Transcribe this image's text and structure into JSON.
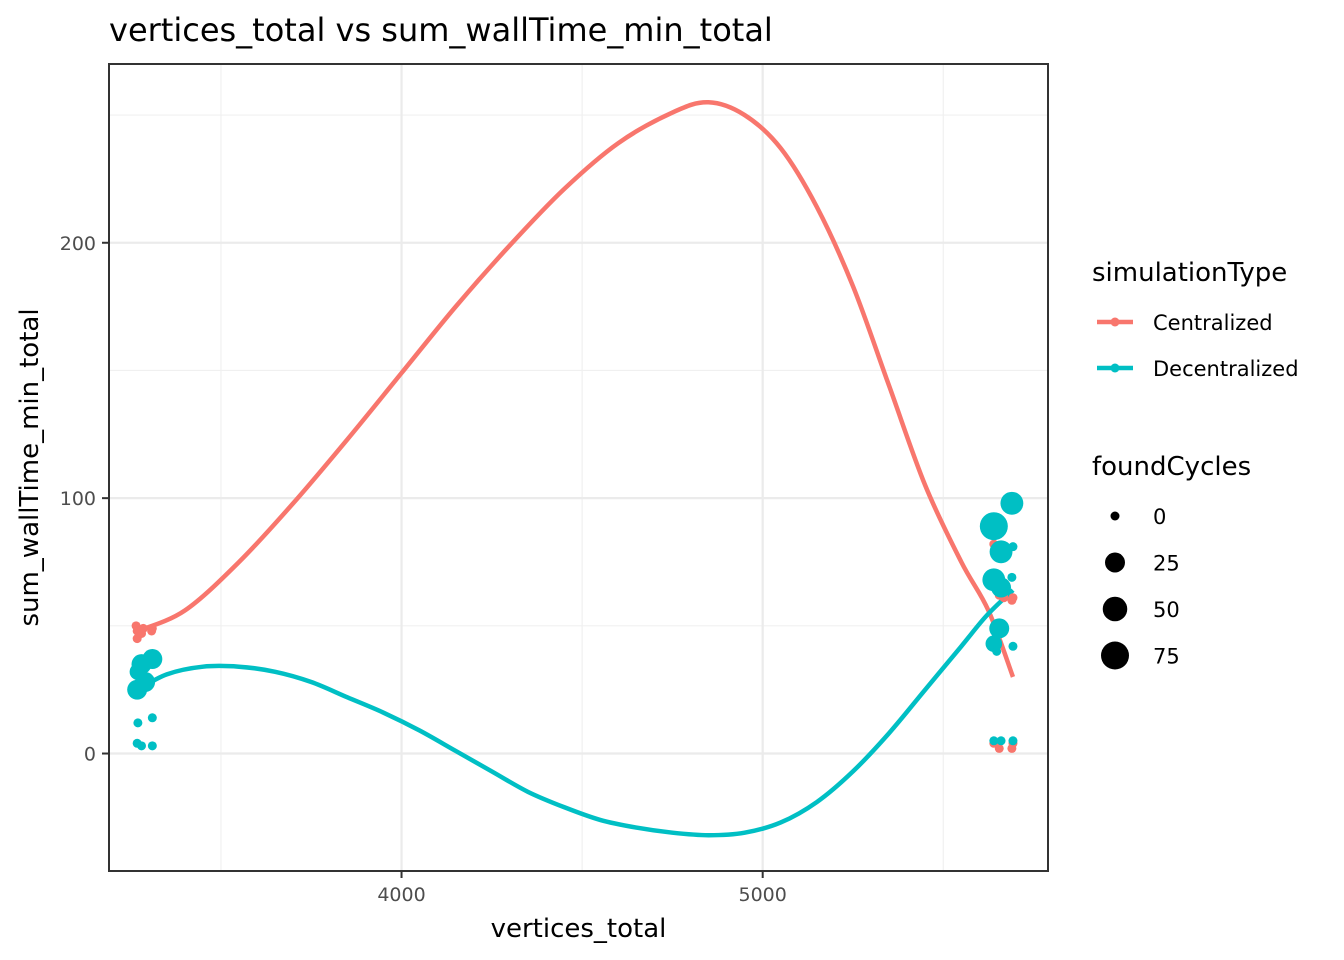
{
  "chart_data": {
    "type": "scatter",
    "title": "vertices_total  vs  sum_wallTime_min_total",
    "xlabel": "vertices_total",
    "ylabel": "sum_wallTime_min_total",
    "xlim": [
      3190,
      5790
    ],
    "ylim": [
      -46,
      270
    ],
    "x_ticks": [
      4000,
      5000
    ],
    "x_tick_labels": [
      "4000",
      "5000"
    ],
    "y_ticks": [
      0,
      100,
      200
    ],
    "y_tick_labels": [
      "0",
      "100",
      "200"
    ],
    "grid": true,
    "color_legend": {
      "title": "simulationType",
      "entries": [
        {
          "label": "Centralized",
          "color": "#F8766D"
        },
        {
          "label": "Decentralized",
          "color": "#00BFC4"
        }
      ]
    },
    "size_legend": {
      "title": "foundCycles",
      "entries": [
        {
          "label": "0",
          "value": 0
        },
        {
          "label": "25",
          "value": 25
        },
        {
          "label": "50",
          "value": 50
        },
        {
          "label": "75",
          "value": 75
        }
      ]
    },
    "legend_position": "right",
    "series": [
      {
        "name": "Centralized",
        "color": "#F8766D",
        "points": [
          {
            "x": 3265,
            "y": 50,
            "size": 0
          },
          {
            "x": 3268,
            "y": 48,
            "size": 0
          },
          {
            "x": 3268,
            "y": 45,
            "size": 0
          },
          {
            "x": 3280,
            "y": 47,
            "size": 0
          },
          {
            "x": 3285,
            "y": 49,
            "size": 0
          },
          {
            "x": 3308,
            "y": 48,
            "size": 0
          },
          {
            "x": 3310,
            "y": 49,
            "size": 0
          },
          {
            "x": 5640,
            "y": 82,
            "size": 0
          },
          {
            "x": 5655,
            "y": 62,
            "size": 0
          },
          {
            "x": 5668,
            "y": 61,
            "size": 0
          },
          {
            "x": 5690,
            "y": 60,
            "size": 0
          },
          {
            "x": 5693,
            "y": 61,
            "size": 0
          },
          {
            "x": 5640,
            "y": 4,
            "size": 0
          },
          {
            "x": 5655,
            "y": 2,
            "size": 0
          },
          {
            "x": 5690,
            "y": 2,
            "size": 0
          },
          {
            "x": 5693,
            "y": 4,
            "size": 0
          }
        ],
        "smooth": [
          {
            "x": 3270,
            "y": 48
          },
          {
            "x": 3400,
            "y": 56
          },
          {
            "x": 3550,
            "y": 75
          },
          {
            "x": 3700,
            "y": 98
          },
          {
            "x": 3850,
            "y": 123
          },
          {
            "x": 4000,
            "y": 149
          },
          {
            "x": 4150,
            "y": 175
          },
          {
            "x": 4300,
            "y": 199
          },
          {
            "x": 4450,
            "y": 221
          },
          {
            "x": 4600,
            "y": 239
          },
          {
            "x": 4750,
            "y": 251
          },
          {
            "x": 4850,
            "y": 255
          },
          {
            "x": 4950,
            "y": 250
          },
          {
            "x": 5050,
            "y": 237
          },
          {
            "x": 5150,
            "y": 214
          },
          {
            "x": 5250,
            "y": 183
          },
          {
            "x": 5350,
            "y": 144
          },
          {
            "x": 5450,
            "y": 105
          },
          {
            "x": 5550,
            "y": 75
          },
          {
            "x": 5625,
            "y": 56
          },
          {
            "x": 5693,
            "y": 30
          }
        ]
      },
      {
        "name": "Decentralized",
        "color": "#00BFC4",
        "points": [
          {
            "x": 3268,
            "y": 25,
            "size": 25
          },
          {
            "x": 3290,
            "y": 28,
            "size": 25
          },
          {
            "x": 3270,
            "y": 32,
            "size": 12
          },
          {
            "x": 3280,
            "y": 35,
            "size": 25
          },
          {
            "x": 3310,
            "y": 37,
            "size": 25
          },
          {
            "x": 3270,
            "y": 12,
            "size": 0
          },
          {
            "x": 3310,
            "y": 14,
            "size": 0
          },
          {
            "x": 3268,
            "y": 4,
            "size": 0
          },
          {
            "x": 3280,
            "y": 3,
            "size": 0
          },
          {
            "x": 3310,
            "y": 3,
            "size": 0
          },
          {
            "x": 5640,
            "y": 89,
            "size": 75
          },
          {
            "x": 5690,
            "y": 98,
            "size": 40
          },
          {
            "x": 5660,
            "y": 79,
            "size": 40
          },
          {
            "x": 5693,
            "y": 81,
            "size": 0
          },
          {
            "x": 5640,
            "y": 68,
            "size": 40
          },
          {
            "x": 5660,
            "y": 65,
            "size": 25
          },
          {
            "x": 5690,
            "y": 69,
            "size": 0
          },
          {
            "x": 5655,
            "y": 49,
            "size": 25
          },
          {
            "x": 5640,
            "y": 43,
            "size": 12
          },
          {
            "x": 5648,
            "y": 40,
            "size": 0
          },
          {
            "x": 5693,
            "y": 42,
            "size": 0
          },
          {
            "x": 5640,
            "y": 5,
            "size": 0
          },
          {
            "x": 5660,
            "y": 5,
            "size": 0
          },
          {
            "x": 5693,
            "y": 5,
            "size": 0
          }
        ],
        "smooth": [
          {
            "x": 3270,
            "y": 25
          },
          {
            "x": 3350,
            "y": 31
          },
          {
            "x": 3450,
            "y": 34
          },
          {
            "x": 3550,
            "y": 34
          },
          {
            "x": 3650,
            "y": 32
          },
          {
            "x": 3750,
            "y": 28
          },
          {
            "x": 3850,
            "y": 22
          },
          {
            "x": 3950,
            "y": 16
          },
          {
            "x": 4050,
            "y": 9
          },
          {
            "x": 4150,
            "y": 1
          },
          {
            "x": 4250,
            "y": -7
          },
          {
            "x": 4350,
            "y": -15
          },
          {
            "x": 4450,
            "y": -21
          },
          {
            "x": 4550,
            "y": -26
          },
          {
            "x": 4650,
            "y": -29
          },
          {
            "x": 4750,
            "y": -31
          },
          {
            "x": 4850,
            "y": -32
          },
          {
            "x": 4950,
            "y": -31
          },
          {
            "x": 5050,
            "y": -27
          },
          {
            "x": 5150,
            "y": -19
          },
          {
            "x": 5250,
            "y": -7
          },
          {
            "x": 5350,
            "y": 8
          },
          {
            "x": 5450,
            "y": 25
          },
          {
            "x": 5550,
            "y": 42
          },
          {
            "x": 5620,
            "y": 54
          },
          {
            "x": 5693,
            "y": 64
          }
        ]
      }
    ]
  }
}
